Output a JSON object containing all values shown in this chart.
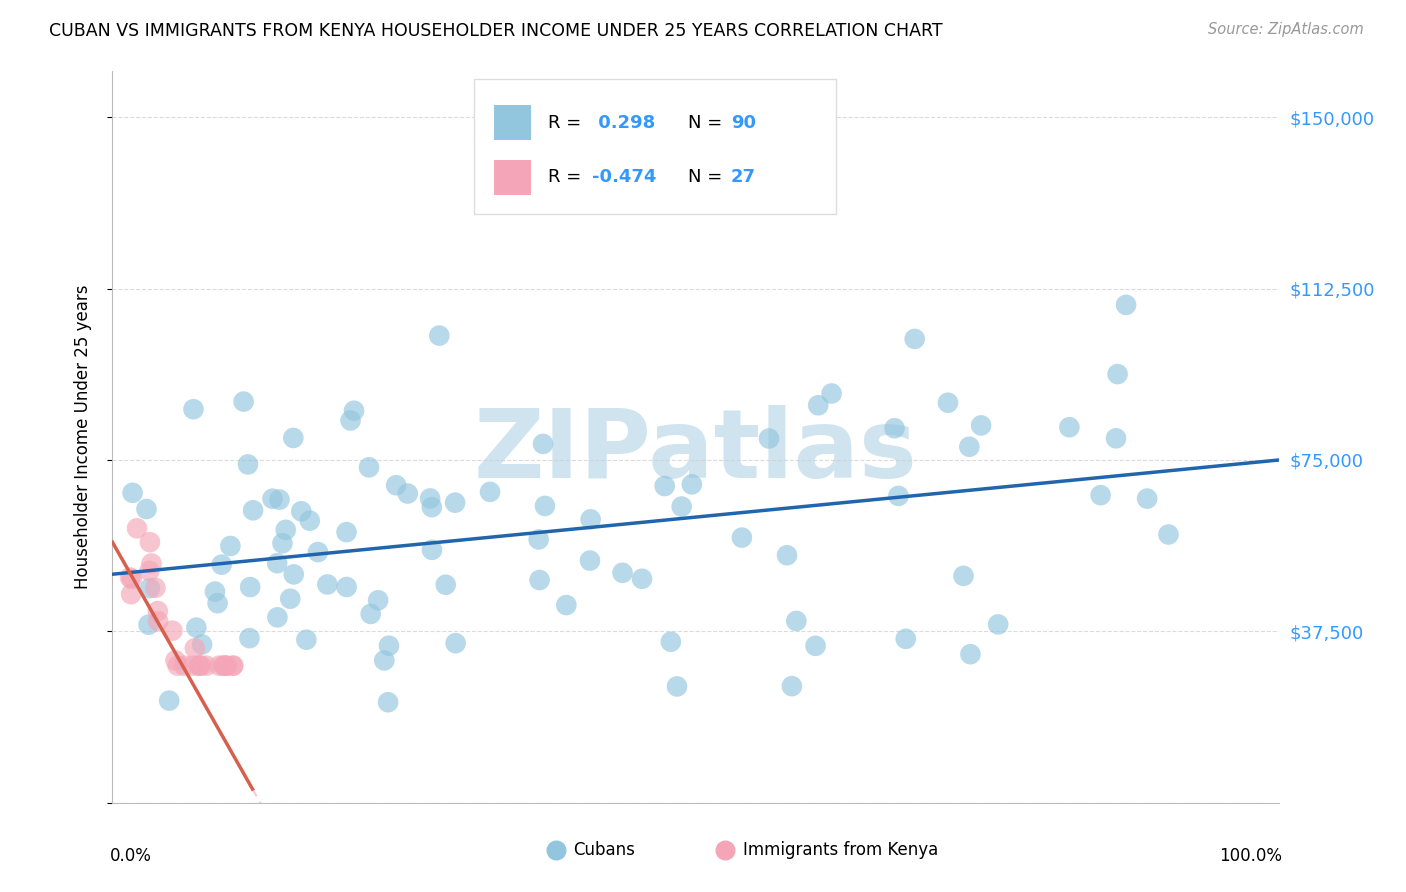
{
  "title": "CUBAN VS IMMIGRANTS FROM KENYA HOUSEHOLDER INCOME UNDER 25 YEARS CORRELATION CHART",
  "source": "Source: ZipAtlas.com",
  "ylabel": "Householder Income Under 25 years",
  "y_ticks": [
    0,
    37500,
    75000,
    112500,
    150000
  ],
  "y_tick_labels": [
    "",
    "$37,500",
    "$75,000",
    "$112,500",
    "$150,000"
  ],
  "x_range": [
    0,
    1
  ],
  "y_range": [
    0,
    160000
  ],
  "cubans_R": 0.298,
  "cubans_N": 90,
  "kenya_R": -0.474,
  "kenya_N": 27,
  "blue_color": "#92c5de",
  "pink_color": "#f4a6b8",
  "blue_line_color": "#2166ac",
  "pink_line_color": "#d6604d",
  "pink_dash_color": "#f4a6b8",
  "watermark": "ZIPatlas",
  "watermark_color": "#d0e4f0",
  "background_color": "#ffffff",
  "grid_color": "#cccccc",
  "legend_label_color": "#3399ff",
  "right_axis_color": "#3399ff",
  "blue_trend_y0": 50000,
  "blue_trend_y1": 75000,
  "pink_trend_x0": 0.0,
  "pink_trend_y0": 57000,
  "pink_trend_slope": -450000
}
